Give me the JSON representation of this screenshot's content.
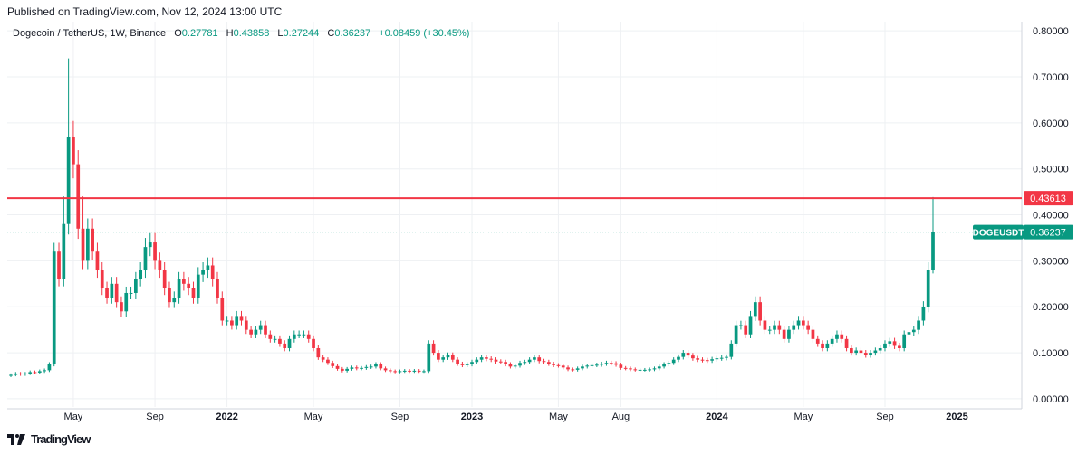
{
  "header": {
    "published": "Published on TradingView.com, Nov 12, 2024 13:00 UTC"
  },
  "legend": {
    "symbol": "Dogecoin / TetherUS, 1W, Binance",
    "o_label": "O",
    "o_value": "0.27781",
    "h_label": "H",
    "h_value": "0.43858",
    "l_label": "L",
    "l_value": "0.27244",
    "c_label": "C",
    "c_value": "0.36237",
    "change": "+0.08459 (+30.45%)"
  },
  "footer": {
    "logo_text": "TradingView"
  },
  "colors": {
    "up": "#089981",
    "down": "#f23645",
    "resistance": "#f23645",
    "price_line": "#089981",
    "grid": "#eef0f3",
    "axis_text": "#131722"
  },
  "chart_data": {
    "type": "candlestick",
    "symbol": "DOGEUSDT",
    "interval": "1W",
    "exchange": "Binance",
    "y_axis": {
      "range": [
        -0.01,
        0.82
      ],
      "ticks": [
        "0.80000",
        "0.70000",
        "0.60000",
        "0.50000",
        "0.40000",
        "0.30000",
        "0.20000",
        "0.10000",
        "0.00000"
      ],
      "tick_values": [
        0.8,
        0.7,
        0.6,
        0.5,
        0.4,
        0.3,
        0.2,
        0.1,
        0.0
      ]
    },
    "x_axis": {
      "labels": [
        "May",
        "Sep",
        "2022",
        "May",
        "Sep",
        "2023",
        "May",
        "Aug",
        "2024",
        "May",
        "Sep",
        "2025"
      ],
      "bold": [
        false,
        false,
        true,
        false,
        false,
        true,
        false,
        false,
        true,
        false,
        false,
        true
      ],
      "label_week_index": [
        13,
        30,
        45,
        63,
        81,
        96,
        114,
        127,
        147,
        165,
        182,
        197
      ]
    },
    "grid": true,
    "horizontal_level": {
      "value": 0.43613,
      "label": "0.43613"
    },
    "last_price": {
      "value": 0.36237,
      "label": "DOGEUSDT",
      "value_label": "0.36237"
    },
    "weekly_closes": [
      0.052,
      0.055,
      0.053,
      0.055,
      0.058,
      0.057,
      0.06,
      0.062,
      0.075,
      0.32,
      0.26,
      0.38,
      0.57,
      0.51,
      0.37,
      0.3,
      0.37,
      0.32,
      0.28,
      0.24,
      0.22,
      0.25,
      0.21,
      0.19,
      0.23,
      0.23,
      0.26,
      0.28,
      0.33,
      0.34,
      0.3,
      0.28,
      0.24,
      0.21,
      0.22,
      0.26,
      0.25,
      0.24,
      0.22,
      0.27,
      0.28,
      0.29,
      0.26,
      0.22,
      0.17,
      0.17,
      0.16,
      0.18,
      0.17,
      0.15,
      0.14,
      0.15,
      0.16,
      0.14,
      0.13,
      0.13,
      0.12,
      0.11,
      0.13,
      0.14,
      0.14,
      0.14,
      0.13,
      0.11,
      0.09,
      0.085,
      0.078,
      0.071,
      0.065,
      0.061,
      0.065,
      0.068,
      0.066,
      0.067,
      0.069,
      0.07,
      0.075,
      0.066,
      0.062,
      0.06,
      0.059,
      0.06,
      0.061,
      0.06,
      0.061,
      0.06,
      0.06,
      0.12,
      0.1,
      0.085,
      0.09,
      0.095,
      0.085,
      0.076,
      0.073,
      0.075,
      0.08,
      0.085,
      0.09,
      0.087,
      0.085,
      0.081,
      0.08,
      0.075,
      0.07,
      0.072,
      0.078,
      0.08,
      0.085,
      0.09,
      0.082,
      0.08,
      0.076,
      0.073,
      0.072,
      0.068,
      0.064,
      0.063,
      0.066,
      0.07,
      0.072,
      0.073,
      0.074,
      0.076,
      0.078,
      0.077,
      0.074,
      0.067,
      0.066,
      0.064,
      0.063,
      0.063,
      0.063,
      0.064,
      0.066,
      0.07,
      0.075,
      0.078,
      0.085,
      0.091,
      0.1,
      0.094,
      0.088,
      0.085,
      0.084,
      0.083,
      0.086,
      0.088,
      0.089,
      0.091,
      0.12,
      0.16,
      0.16,
      0.14,
      0.18,
      0.21,
      0.17,
      0.15,
      0.15,
      0.16,
      0.15,
      0.13,
      0.15,
      0.16,
      0.17,
      0.16,
      0.15,
      0.13,
      0.12,
      0.11,
      0.12,
      0.13,
      0.14,
      0.13,
      0.11,
      0.1,
      0.105,
      0.1,
      0.095,
      0.1,
      0.105,
      0.11,
      0.12,
      0.125,
      0.115,
      0.11,
      0.14,
      0.145,
      0.15,
      0.17,
      0.2,
      0.28,
      0.36237
    ]
  }
}
